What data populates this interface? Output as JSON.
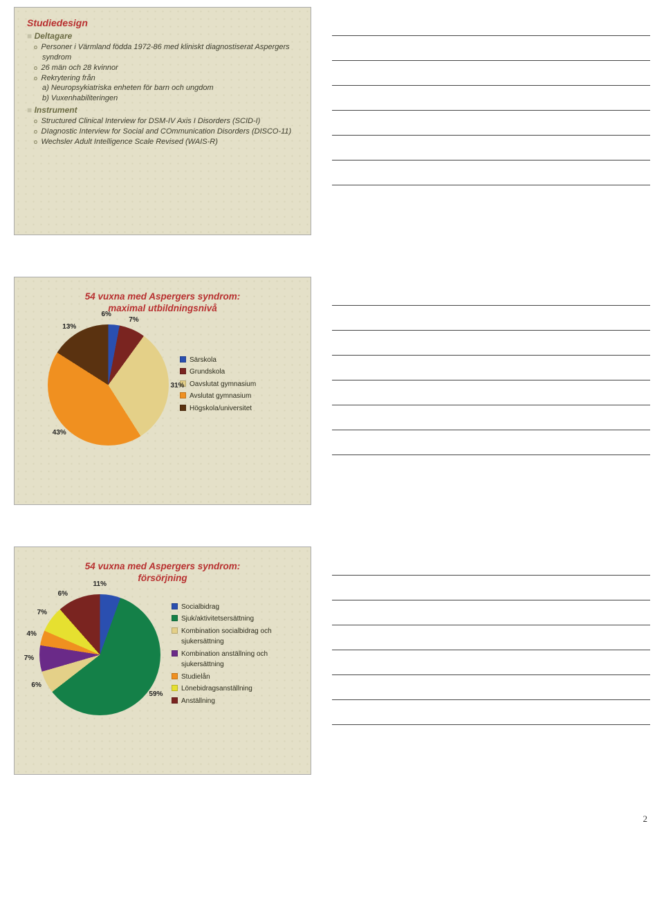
{
  "page_number": "2",
  "slide1": {
    "title": "Studiedesign",
    "section_a": "Deltagare",
    "a1": "Personer i Värmland födda 1972-86 med kliniskt diagnostiserat Aspergers syndrom",
    "a2": "26 män och 28 kvinnor",
    "a3": "Rekrytering från",
    "a3a": "a) Neuropsykiatriska enheten för barn och ungdom",
    "a3b": "b) Vuxenhabiliteringen",
    "section_b": "Instrument",
    "b1": "Structured Clinical Interview for DSM-IV Axis I Disorders (SCID-I)",
    "b2": "DIagnostic Interview for Social and COmmunication Disorders (DISCO-11)",
    "b3": "Wechsler Adult Intelligence Scale Revised (WAIS-R)"
  },
  "slide2": {
    "title_l1": "54 vuxna med Aspergers syndrom:",
    "title_l2": "maximal utbildningsnivå",
    "chart": {
      "type": "pie",
      "slices": [
        {
          "label": "Särskola",
          "value": 6,
          "color": "#2a4fb0",
          "pct": "6%"
        },
        {
          "label": "Grundskola",
          "value": 7,
          "color": "#7a2420",
          "pct": "7%"
        },
        {
          "label": "Oavslutat gymnasium",
          "value": 31,
          "color": "#e4d088",
          "pct": "31%"
        },
        {
          "label": "Avslutat gymnasium",
          "value": 43,
          "color": "#f09020",
          "pct": "43%"
        },
        {
          "label": "Högskola/universitet",
          "value": 13,
          "color": "#5a3210",
          "pct": "13%"
        }
      ]
    }
  },
  "slide3": {
    "title_l1": "54 vuxna med Aspergers syndrom:",
    "title_l2": "försörjning",
    "chart": {
      "type": "pie",
      "slices": [
        {
          "label": "Socialbidrag",
          "value": 11,
          "color": "#2a4fb0",
          "pct": "11%"
        },
        {
          "label": "Sjuk/aktivitetsersättning",
          "value": 59,
          "color": "#148048",
          "pct": "59%"
        },
        {
          "label": "Kombination socialbidrag och sjukersättning",
          "value": 6,
          "color": "#e4d088",
          "pct": "6%"
        },
        {
          "label": "Kombination anställning och sjukersättning",
          "value": 7,
          "color": "#6a2a88",
          "pct": "7%"
        },
        {
          "label": "Studielån",
          "value": 4,
          "color": "#f09020",
          "pct": "4%"
        },
        {
          "label": "Lönebidragsanställning",
          "value": 7,
          "color": "#e6e030",
          "pct": "7%"
        },
        {
          "label": "Anställning",
          "value": 6,
          "color": "#7a2420",
          "pct": "6%"
        }
      ]
    }
  }
}
